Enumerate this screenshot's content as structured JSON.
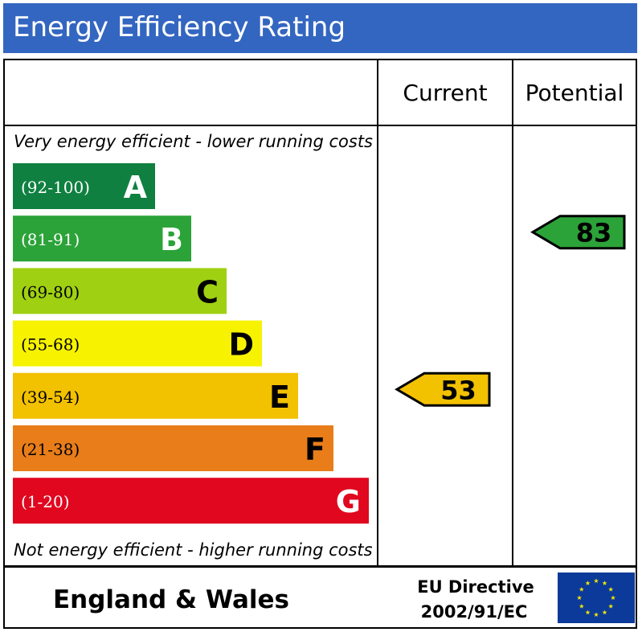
{
  "title": "Energy Efficiency Rating",
  "chart_data": {
    "type": "bar",
    "columns": [
      "Current",
      "Potential"
    ],
    "top_caption": "Very energy efficient - lower running costs",
    "bottom_caption": "Not energy efficient - higher running costs",
    "bands": [
      {
        "letter": "A",
        "range": "(92-100)",
        "color": "#0f8040",
        "text_color": "#ffffff"
      },
      {
        "letter": "B",
        "range": "(81-91)",
        "color": "#2ca339",
        "text_color": "#ffffff"
      },
      {
        "letter": "C",
        "range": "(69-80)",
        "color": "#a0d012",
        "text_color": "#000000"
      },
      {
        "letter": "D",
        "range": "(55-68)",
        "color": "#f7f200",
        "text_color": "#000000"
      },
      {
        "letter": "E",
        "range": "(39-54)",
        "color": "#f2c100",
        "text_color": "#000000"
      },
      {
        "letter": "F",
        "range": "(21-38)",
        "color": "#e87d1a",
        "text_color": "#000000"
      },
      {
        "letter": "G",
        "range": "(1-20)",
        "color": "#e0071f",
        "text_color": "#ffffff"
      }
    ],
    "ratings": [
      {
        "column": "Current",
        "value": "53",
        "band": "E",
        "color": "#f2c100"
      },
      {
        "column": "Potential",
        "value": "83",
        "band": "B",
        "color": "#2ca339"
      }
    ]
  },
  "footer": {
    "region": "England & Wales",
    "directive_line1": "EU Directive",
    "directive_line2": "2002/91/EC",
    "flag_icon": "eu-flag-icon",
    "flag_color": "#0b3a9a",
    "star_color": "#f2e600"
  }
}
